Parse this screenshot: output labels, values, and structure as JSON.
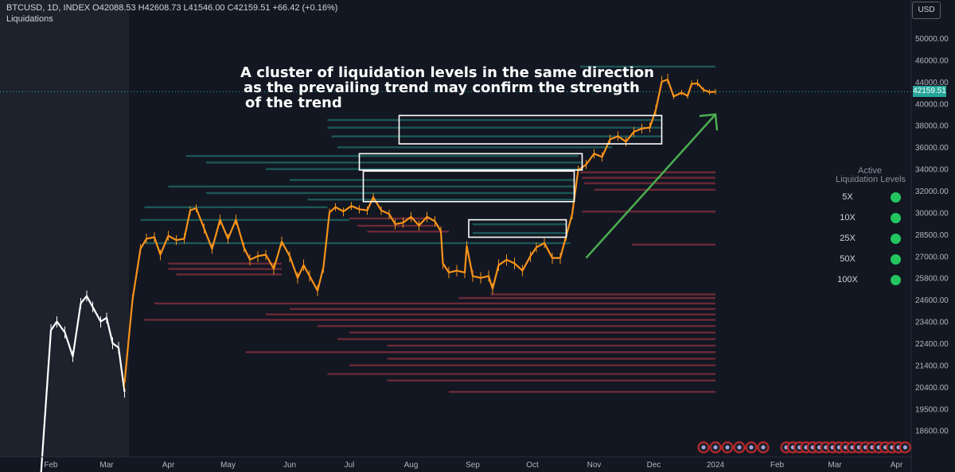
{
  "header": {
    "symbol_line": "BTCUSD, 1D, INDEX  O42088.53  H42608.73  L41546.00  C42159.51  +66.42 (+0.16%)",
    "indicator": "Liquidations",
    "currency": "USD"
  },
  "annotation": {
    "lines": [
      "A cluster of liquidation levels in the same direction",
      " as the prevailing trend may confirm the strength",
      " of the trend"
    ]
  },
  "legend": {
    "title_line1": "Active",
    "title_line2": "Liquidation Levels",
    "items": [
      {
        "label": "5X"
      },
      {
        "label": "10X"
      },
      {
        "label": "25X"
      },
      {
        "label": "50X"
      },
      {
        "label": "100X"
      }
    ],
    "dot_color": "#22c55e"
  },
  "colors": {
    "background": "#131722",
    "candle_up": "#f7931a",
    "candle_old": "#ffffff",
    "long_liq": "#26a69a",
    "short_liq": "#b23a48",
    "arrow": "#4caf50",
    "price_tag": "#26a69a"
  },
  "chart_data": {
    "type": "line",
    "title": "",
    "xlabel": "",
    "ylabel": "",
    "last_price": 42159.51,
    "last_price_label": "42159.51",
    "x_ticks": [
      "Feb",
      "Mar",
      "Apr",
      "May",
      "Jun",
      "Jul",
      "Aug",
      "Sep",
      "Oct",
      "Nov",
      "Dec",
      "2024",
      "Feb",
      "Mar",
      "Apr"
    ],
    "y_ticks": [
      "50000.00",
      "46000.00",
      "44000.00",
      "40000.00",
      "38000.00",
      "36000.00",
      "34000.00",
      "32000.00",
      "30000.00",
      "28500.00",
      "27000.00",
      "25800.00",
      "24600.00",
      "23400.00",
      "22400.00",
      "21400.00",
      "20400.00",
      "19500.00",
      "18600.00"
    ],
    "y_tick_values": [
      50000,
      46000,
      44000,
      40000,
      38000,
      36000,
      34000,
      32000,
      30000,
      28500,
      27000,
      25800,
      24600,
      23400,
      22400,
      21400,
      20400,
      19500,
      18600
    ],
    "series": [
      {
        "segment": "white",
        "points": [
          [
            "2023-01-27",
            16800
          ],
          [
            "2023-02-01",
            23000
          ],
          [
            "2023-02-04",
            23400
          ],
          [
            "2023-02-08",
            22900
          ],
          [
            "2023-02-12",
            21800
          ],
          [
            "2023-02-16",
            24400
          ],
          [
            "2023-02-19",
            24800
          ],
          [
            "2023-02-22",
            24200
          ],
          [
            "2023-02-26",
            23400
          ],
          [
            "2023-03-01",
            23600
          ],
          [
            "2023-03-04",
            22400
          ],
          [
            "2023-03-07",
            22200
          ],
          [
            "2023-03-10",
            20200
          ]
        ]
      },
      {
        "segment": "orange",
        "points": [
          [
            "2023-03-10",
            20600
          ],
          [
            "2023-03-14",
            24600
          ],
          [
            "2023-03-18",
            27500
          ],
          [
            "2023-03-21",
            28200
          ],
          [
            "2023-03-25",
            28300
          ],
          [
            "2023-03-28",
            27100
          ],
          [
            "2023-04-01",
            28400
          ],
          [
            "2023-04-05",
            28100
          ],
          [
            "2023-04-09",
            28200
          ],
          [
            "2023-04-12",
            30200
          ],
          [
            "2023-04-15",
            30400
          ],
          [
            "2023-04-19",
            28900
          ],
          [
            "2023-04-23",
            27500
          ],
          [
            "2023-04-27",
            29500
          ],
          [
            "2023-05-01",
            28200
          ],
          [
            "2023-05-05",
            29500
          ],
          [
            "2023-05-09",
            27600
          ],
          [
            "2023-05-12",
            26800
          ],
          [
            "2023-05-16",
            27000
          ],
          [
            "2023-05-20",
            27100
          ],
          [
            "2023-05-24",
            26300
          ],
          [
            "2023-05-28",
            28000
          ],
          [
            "2023-06-01",
            27000
          ],
          [
            "2023-06-05",
            25800
          ],
          [
            "2023-06-08",
            26500
          ],
          [
            "2023-06-11",
            25900
          ],
          [
            "2023-06-15",
            25100
          ],
          [
            "2023-06-18",
            26400
          ],
          [
            "2023-06-21",
            30000
          ],
          [
            "2023-06-24",
            30500
          ],
          [
            "2023-06-28",
            30100
          ],
          [
            "2023-07-02",
            30600
          ],
          [
            "2023-07-06",
            30300
          ],
          [
            "2023-07-10",
            30200
          ],
          [
            "2023-07-13",
            31400
          ],
          [
            "2023-07-17",
            30200
          ],
          [
            "2023-07-21",
            29900
          ],
          [
            "2023-07-24",
            29200
          ],
          [
            "2023-07-28",
            29300
          ],
          [
            "2023-08-01",
            29700
          ],
          [
            "2023-08-05",
            29100
          ],
          [
            "2023-08-09",
            29700
          ],
          [
            "2023-08-13",
            29400
          ],
          [
            "2023-08-16",
            28700
          ],
          [
            "2023-08-17",
            26600
          ],
          [
            "2023-08-20",
            26100
          ],
          [
            "2023-08-24",
            26200
          ],
          [
            "2023-08-28",
            26100
          ],
          [
            "2023-08-29",
            27700
          ],
          [
            "2023-09-01",
            25900
          ],
          [
            "2023-09-05",
            25800
          ],
          [
            "2023-09-09",
            25900
          ],
          [
            "2023-09-11",
            25200
          ],
          [
            "2023-09-14",
            26500
          ],
          [
            "2023-09-18",
            26800
          ],
          [
            "2023-09-22",
            26600
          ],
          [
            "2023-09-26",
            26200
          ],
          [
            "2023-09-30",
            27000
          ],
          [
            "2023-10-03",
            27600
          ],
          [
            "2023-10-07",
            27900
          ],
          [
            "2023-10-11",
            26900
          ],
          [
            "2023-10-15",
            26900
          ],
          [
            "2023-10-18",
            28400
          ],
          [
            "2023-10-21",
            29900
          ],
          [
            "2023-10-24",
            33900
          ],
          [
            "2023-10-28",
            34400
          ],
          [
            "2023-11-01",
            35400
          ],
          [
            "2023-11-05",
            35100
          ],
          [
            "2023-11-09",
            36700
          ],
          [
            "2023-11-13",
            37000
          ],
          [
            "2023-11-17",
            36500
          ],
          [
            "2023-11-21",
            37400
          ],
          [
            "2023-11-25",
            37700
          ],
          [
            "2023-11-29",
            37800
          ],
          [
            "2023-12-02",
            39400
          ],
          [
            "2023-12-05",
            44000
          ],
          [
            "2023-12-08",
            44200
          ],
          [
            "2023-12-11",
            41300
          ],
          [
            "2023-12-15",
            42000
          ],
          [
            "2023-12-18",
            41400
          ],
          [
            "2023-12-20",
            43600
          ],
          [
            "2023-12-23",
            43700
          ],
          [
            "2023-12-26",
            42500
          ],
          [
            "2023-12-29",
            42100
          ],
          [
            "2024-01-01",
            42160
          ]
        ]
      }
    ],
    "liquidation_levels": {
      "long": [
        {
          "price": 45400,
          "from": "2023-10-25",
          "to": "2024-01-01"
        },
        {
          "price": 38500,
          "from": "2023-06-20",
          "to": "2023-12-05"
        },
        {
          "price": 37800,
          "from": "2023-06-20",
          "to": "2023-12-05"
        },
        {
          "price": 37000,
          "from": "2023-06-22",
          "to": "2023-12-05"
        },
        {
          "price": 36000,
          "from": "2023-06-25",
          "to": "2023-11-10"
        },
        {
          "price": 35200,
          "from": "2023-04-10",
          "to": "2023-10-24"
        },
        {
          "price": 34600,
          "from": "2023-04-20",
          "to": "2023-10-26"
        },
        {
          "price": 34000,
          "from": "2023-05-20",
          "to": "2023-10-26"
        },
        {
          "price": 33000,
          "from": "2023-06-01",
          "to": "2023-10-22"
        },
        {
          "price": 32400,
          "from": "2023-04-01",
          "to": "2023-10-22"
        },
        {
          "price": 31800,
          "from": "2023-04-20",
          "to": "2023-10-22"
        },
        {
          "price": 31200,
          "from": "2023-06-10",
          "to": "2023-10-22"
        },
        {
          "price": 30500,
          "from": "2023-03-20",
          "to": "2023-06-20"
        },
        {
          "price": 29500,
          "from": "2023-03-18",
          "to": "2023-07-01"
        },
        {
          "price": 29200,
          "from": "2023-09-01",
          "to": "2023-10-18"
        },
        {
          "price": 28600,
          "from": "2023-09-01",
          "to": "2023-10-18"
        },
        {
          "price": 27900,
          "from": "2023-03-20",
          "to": "2023-10-20"
        }
      ],
      "short": [
        {
          "price": 33700,
          "from": "2023-10-25",
          "to": "2024-01-01"
        },
        {
          "price": 33200,
          "from": "2023-10-26",
          "to": "2024-01-01"
        },
        {
          "price": 32700,
          "from": "2023-10-27",
          "to": "2024-01-01"
        },
        {
          "price": 32100,
          "from": "2023-11-01",
          "to": "2024-01-01"
        },
        {
          "price": 30100,
          "from": "2023-10-26",
          "to": "2024-01-01"
        },
        {
          "price": 29600,
          "from": "2023-07-01",
          "to": "2023-08-10"
        },
        {
          "price": 29100,
          "from": "2023-07-05",
          "to": "2023-08-15"
        },
        {
          "price": 28700,
          "from": "2023-07-10",
          "to": "2023-08-20"
        },
        {
          "price": 27800,
          "from": "2023-11-20",
          "to": "2024-01-01"
        },
        {
          "price": 26600,
          "from": "2023-04-01",
          "to": "2023-05-28"
        },
        {
          "price": 26300,
          "from": "2023-04-01",
          "to": "2023-05-28"
        },
        {
          "price": 26000,
          "from": "2023-04-05",
          "to": "2023-05-28"
        },
        {
          "price": 24900,
          "from": "2023-09-10",
          "to": "2024-01-01"
        },
        {
          "price": 24700,
          "from": "2023-08-25",
          "to": "2024-01-01"
        },
        {
          "price": 24400,
          "from": "2023-03-25",
          "to": "2024-01-01"
        },
        {
          "price": 24100,
          "from": "2023-06-01",
          "to": "2024-01-01"
        },
        {
          "price": 23800,
          "from": "2023-05-20",
          "to": "2024-01-01"
        },
        {
          "price": 23500,
          "from": "2023-03-20",
          "to": "2024-01-01"
        },
        {
          "price": 23200,
          "from": "2023-06-15",
          "to": "2024-01-01"
        },
        {
          "price": 22900,
          "from": "2023-07-01",
          "to": "2024-01-01"
        },
        {
          "price": 22600,
          "from": "2023-06-25",
          "to": "2024-01-01"
        },
        {
          "price": 22300,
          "from": "2023-07-20",
          "to": "2024-01-01"
        },
        {
          "price": 22000,
          "from": "2023-05-10",
          "to": "2024-01-01"
        },
        {
          "price": 21700,
          "from": "2023-07-20",
          "to": "2024-01-01"
        },
        {
          "price": 21400,
          "from": "2023-07-01",
          "to": "2024-01-01"
        },
        {
          "price": 21000,
          "from": "2023-06-20",
          "to": "2024-01-01"
        },
        {
          "price": 20700,
          "from": "2023-07-20",
          "to": "2024-01-01"
        },
        {
          "price": 20200,
          "from": "2023-08-20",
          "to": "2024-01-01"
        }
      ]
    },
    "boxes": [
      {
        "from": "2023-07-26",
        "to": "2023-12-05",
        "price_low": 36300,
        "price_high": 38900
      },
      {
        "from": "2023-07-06",
        "to": "2023-10-26",
        "price_low": 33900,
        "price_high": 35400
      },
      {
        "from": "2023-07-08",
        "to": "2023-10-22",
        "price_low": 31000,
        "price_high": 33800
      },
      {
        "from": "2023-08-30",
        "to": "2023-10-18",
        "price_low": 28300,
        "price_high": 29500
      }
    ],
    "arrow": {
      "from_date": "2023-10-28",
      "from_price": 26900,
      "to_date": "2024-01-01",
      "to_price": 39000
    },
    "event_icons_count": 25
  }
}
